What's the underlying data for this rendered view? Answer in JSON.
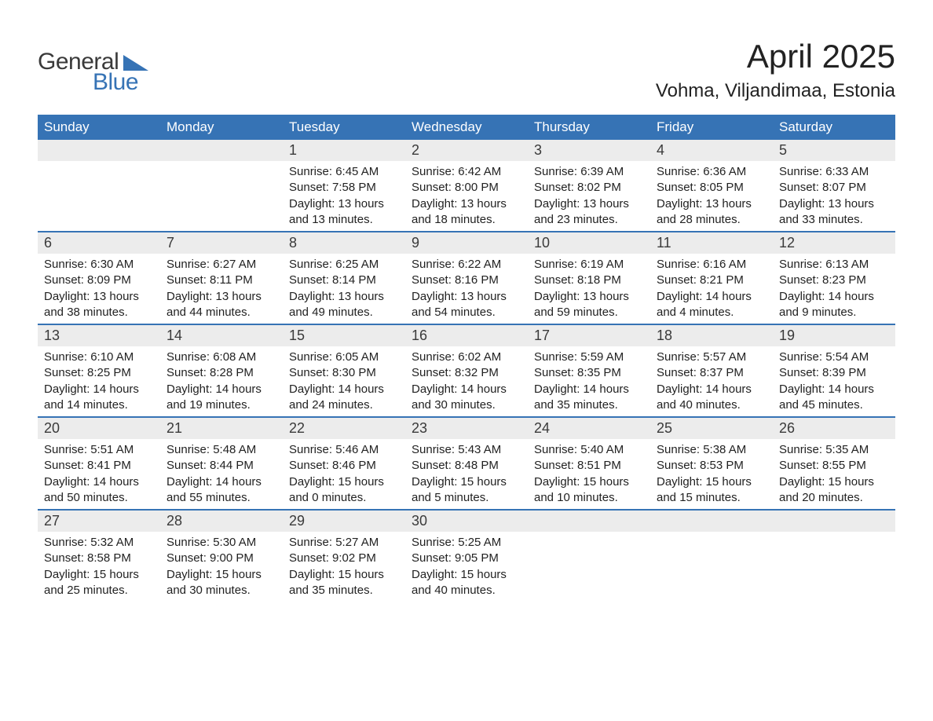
{
  "logo": {
    "text_general": "General",
    "text_blue": "Blue",
    "triangle_color": "#3673b5"
  },
  "title": "April 2025",
  "location": "Vohma, Viljandimaa, Estonia",
  "colors": {
    "header_bg": "#3673b5",
    "header_text": "#ffffff",
    "daynum_bg": "#ececec",
    "text": "#222222",
    "week_border": "#3673b5"
  },
  "day_headers": [
    "Sunday",
    "Monday",
    "Tuesday",
    "Wednesday",
    "Thursday",
    "Friday",
    "Saturday"
  ],
  "weeks": [
    [
      {
        "day": "",
        "sunrise": "",
        "sunset": "",
        "daylight": ""
      },
      {
        "day": "",
        "sunrise": "",
        "sunset": "",
        "daylight": ""
      },
      {
        "day": "1",
        "sunrise": "Sunrise: 6:45 AM",
        "sunset": "Sunset: 7:58 PM",
        "daylight": "Daylight: 13 hours and 13 minutes."
      },
      {
        "day": "2",
        "sunrise": "Sunrise: 6:42 AM",
        "sunset": "Sunset: 8:00 PM",
        "daylight": "Daylight: 13 hours and 18 minutes."
      },
      {
        "day": "3",
        "sunrise": "Sunrise: 6:39 AM",
        "sunset": "Sunset: 8:02 PM",
        "daylight": "Daylight: 13 hours and 23 minutes."
      },
      {
        "day": "4",
        "sunrise": "Sunrise: 6:36 AM",
        "sunset": "Sunset: 8:05 PM",
        "daylight": "Daylight: 13 hours and 28 minutes."
      },
      {
        "day": "5",
        "sunrise": "Sunrise: 6:33 AM",
        "sunset": "Sunset: 8:07 PM",
        "daylight": "Daylight: 13 hours and 33 minutes."
      }
    ],
    [
      {
        "day": "6",
        "sunrise": "Sunrise: 6:30 AM",
        "sunset": "Sunset: 8:09 PM",
        "daylight": "Daylight: 13 hours and 38 minutes."
      },
      {
        "day": "7",
        "sunrise": "Sunrise: 6:27 AM",
        "sunset": "Sunset: 8:11 PM",
        "daylight": "Daylight: 13 hours and 44 minutes."
      },
      {
        "day": "8",
        "sunrise": "Sunrise: 6:25 AM",
        "sunset": "Sunset: 8:14 PM",
        "daylight": "Daylight: 13 hours and 49 minutes."
      },
      {
        "day": "9",
        "sunrise": "Sunrise: 6:22 AM",
        "sunset": "Sunset: 8:16 PM",
        "daylight": "Daylight: 13 hours and 54 minutes."
      },
      {
        "day": "10",
        "sunrise": "Sunrise: 6:19 AM",
        "sunset": "Sunset: 8:18 PM",
        "daylight": "Daylight: 13 hours and 59 minutes."
      },
      {
        "day": "11",
        "sunrise": "Sunrise: 6:16 AM",
        "sunset": "Sunset: 8:21 PM",
        "daylight": "Daylight: 14 hours and 4 minutes."
      },
      {
        "day": "12",
        "sunrise": "Sunrise: 6:13 AM",
        "sunset": "Sunset: 8:23 PM",
        "daylight": "Daylight: 14 hours and 9 minutes."
      }
    ],
    [
      {
        "day": "13",
        "sunrise": "Sunrise: 6:10 AM",
        "sunset": "Sunset: 8:25 PM",
        "daylight": "Daylight: 14 hours and 14 minutes."
      },
      {
        "day": "14",
        "sunrise": "Sunrise: 6:08 AM",
        "sunset": "Sunset: 8:28 PM",
        "daylight": "Daylight: 14 hours and 19 minutes."
      },
      {
        "day": "15",
        "sunrise": "Sunrise: 6:05 AM",
        "sunset": "Sunset: 8:30 PM",
        "daylight": "Daylight: 14 hours and 24 minutes."
      },
      {
        "day": "16",
        "sunrise": "Sunrise: 6:02 AM",
        "sunset": "Sunset: 8:32 PM",
        "daylight": "Daylight: 14 hours and 30 minutes."
      },
      {
        "day": "17",
        "sunrise": "Sunrise: 5:59 AM",
        "sunset": "Sunset: 8:35 PM",
        "daylight": "Daylight: 14 hours and 35 minutes."
      },
      {
        "day": "18",
        "sunrise": "Sunrise: 5:57 AM",
        "sunset": "Sunset: 8:37 PM",
        "daylight": "Daylight: 14 hours and 40 minutes."
      },
      {
        "day": "19",
        "sunrise": "Sunrise: 5:54 AM",
        "sunset": "Sunset: 8:39 PM",
        "daylight": "Daylight: 14 hours and 45 minutes."
      }
    ],
    [
      {
        "day": "20",
        "sunrise": "Sunrise: 5:51 AM",
        "sunset": "Sunset: 8:41 PM",
        "daylight": "Daylight: 14 hours and 50 minutes."
      },
      {
        "day": "21",
        "sunrise": "Sunrise: 5:48 AM",
        "sunset": "Sunset: 8:44 PM",
        "daylight": "Daylight: 14 hours and 55 minutes."
      },
      {
        "day": "22",
        "sunrise": "Sunrise: 5:46 AM",
        "sunset": "Sunset: 8:46 PM",
        "daylight": "Daylight: 15 hours and 0 minutes."
      },
      {
        "day": "23",
        "sunrise": "Sunrise: 5:43 AM",
        "sunset": "Sunset: 8:48 PM",
        "daylight": "Daylight: 15 hours and 5 minutes."
      },
      {
        "day": "24",
        "sunrise": "Sunrise: 5:40 AM",
        "sunset": "Sunset: 8:51 PM",
        "daylight": "Daylight: 15 hours and 10 minutes."
      },
      {
        "day": "25",
        "sunrise": "Sunrise: 5:38 AM",
        "sunset": "Sunset: 8:53 PM",
        "daylight": "Daylight: 15 hours and 15 minutes."
      },
      {
        "day": "26",
        "sunrise": "Sunrise: 5:35 AM",
        "sunset": "Sunset: 8:55 PM",
        "daylight": "Daylight: 15 hours and 20 minutes."
      }
    ],
    [
      {
        "day": "27",
        "sunrise": "Sunrise: 5:32 AM",
        "sunset": "Sunset: 8:58 PM",
        "daylight": "Daylight: 15 hours and 25 minutes."
      },
      {
        "day": "28",
        "sunrise": "Sunrise: 5:30 AM",
        "sunset": "Sunset: 9:00 PM",
        "daylight": "Daylight: 15 hours and 30 minutes."
      },
      {
        "day": "29",
        "sunrise": "Sunrise: 5:27 AM",
        "sunset": "Sunset: 9:02 PM",
        "daylight": "Daylight: 15 hours and 35 minutes."
      },
      {
        "day": "30",
        "sunrise": "Sunrise: 5:25 AM",
        "sunset": "Sunset: 9:05 PM",
        "daylight": "Daylight: 15 hours and 40 minutes."
      },
      {
        "day": "",
        "sunrise": "",
        "sunset": "",
        "daylight": ""
      },
      {
        "day": "",
        "sunrise": "",
        "sunset": "",
        "daylight": ""
      },
      {
        "day": "",
        "sunrise": "",
        "sunset": "",
        "daylight": ""
      }
    ]
  ]
}
